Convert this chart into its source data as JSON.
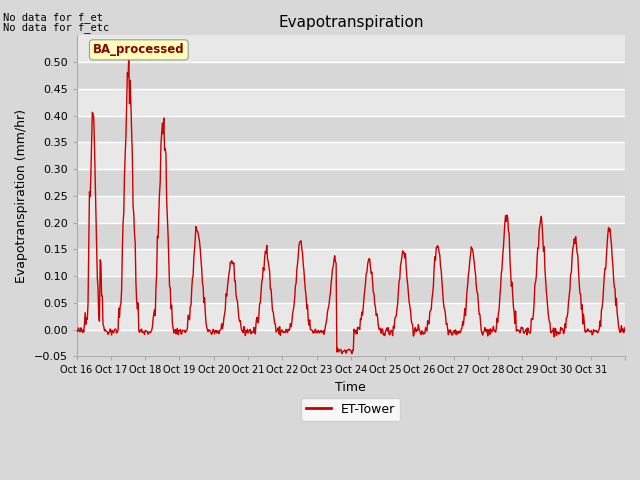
{
  "title": "Evapotranspiration",
  "xlabel": "Time",
  "ylabel": "Evapotranspiration (mm/hr)",
  "ylim": [
    -0.05,
    0.55
  ],
  "yticks": [
    -0.05,
    0.0,
    0.05,
    0.1,
    0.15,
    0.2,
    0.25,
    0.3,
    0.35,
    0.4,
    0.45,
    0.5
  ],
  "line_color": "#cc0000",
  "line_width": 1.0,
  "fig_bg_color": "#d8d8d8",
  "plot_bg_color": "#e8e8e8",
  "band_color": "#d0d0d0",
  "legend_label": "ET-Tower",
  "note_lines": [
    "No data for f_et",
    "No data for f_etc"
  ],
  "ba_label": "BA_processed",
  "xticklabels": [
    "Oct 16",
    "Oct 17",
    "Oct 18",
    "Oct 19",
    "Oct 20",
    "Oct 21",
    "Oct 22",
    "Oct 23",
    "Oct 24",
    "Oct 25",
    "Oct 26",
    "Oct 27",
    "Oct 28",
    "Oct 29",
    "Oct 30",
    "Oct 31"
  ],
  "n_days": 16,
  "day_peaks": [
    0.41,
    0.48,
    0.38,
    0.19,
    0.13,
    0.15,
    0.16,
    0.13,
    0.13,
    0.15,
    0.16,
    0.15,
    0.21,
    0.2,
    0.17,
    0.19
  ],
  "title_fontsize": 11,
  "axis_fontsize": 9,
  "tick_fontsize": 8,
  "xtick_fontsize": 7
}
